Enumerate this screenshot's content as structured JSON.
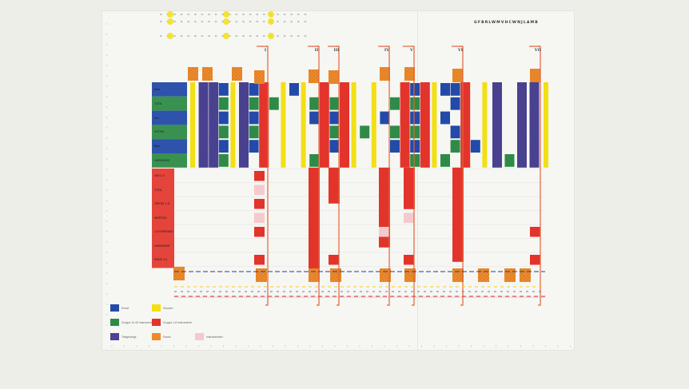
{
  "document": {
    "code": "GFBRLWMVHCWNJLAMB",
    "top_labels": [
      "I",
      "II",
      "III",
      "IV",
      "V",
      "VI",
      "VII"
    ]
  },
  "chart_data": {
    "colors": {
      "blue": "#234aa8",
      "green": "#2e8b47",
      "yellow": "#f2df14",
      "red": "#e3342b",
      "violet": "#4b4393",
      "orange": "#ee8a2a",
      "bracket": "#e2643a",
      "pink": "#f5c9cd"
    },
    "rows_top": [
      "Blau",
      "TUTA",
      "Rot",
      "EXTRA",
      "Blau",
      "HARMONIE"
    ],
    "rows_bottom": [
      "V/M 1-6",
      "TUTA",
      "GRENZ 1-6",
      "WERTEN",
      "1-6 EMPFANG",
      "HARMONIE",
      "ENDE 1-6"
    ],
    "legend": [
      {
        "color": "blue",
        "label": "Einzel"
      },
      {
        "color": "yellow",
        "label": "Glocken"
      },
      {
        "color": "green",
        "label": "Gruppe 10-40 Instrumente"
      },
      {
        "color": "red",
        "label": "Gruppe 1-6 Instrumente"
      },
      {
        "color": "violet",
        "label": "Tiefgesänge"
      },
      {
        "color": "orange",
        "label": "Pause"
      },
      {
        "color": "pink",
        "label": "Instrumentiert"
      }
    ]
  }
}
